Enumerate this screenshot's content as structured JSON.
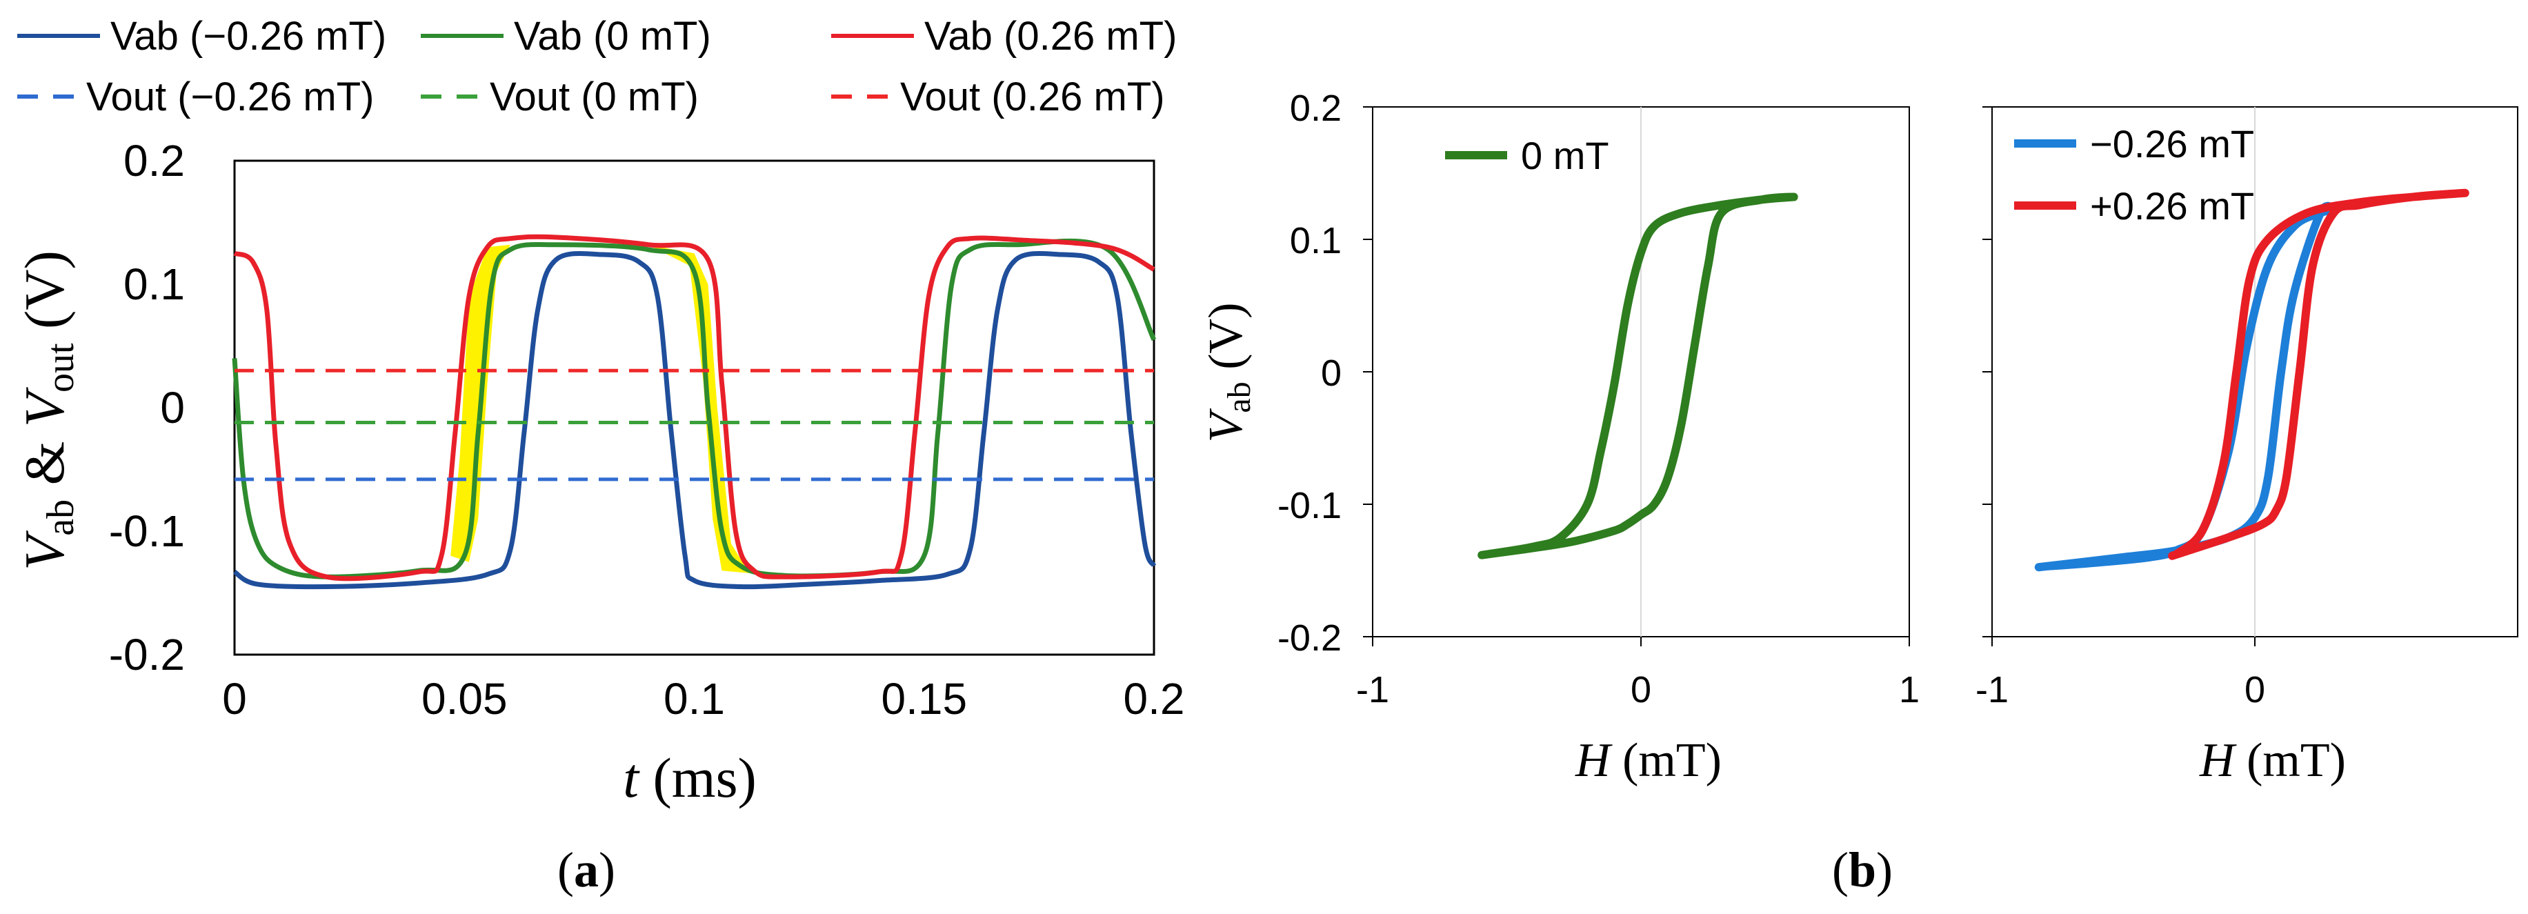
{
  "chart_data": [
    {
      "type": "line",
      "panel_label": "a",
      "xlabel": "t (ms)",
      "ylabel": "V_ab & V_out (V)",
      "xlim": [
        0,
        0.2
      ],
      "ylim": [
        -0.2,
        0.2
      ],
      "xticks": [
        "0",
        "0.05",
        "0.1",
        "0.15",
        "0.2"
      ],
      "yticks": [
        "0.2",
        "0.1",
        "0",
        "-0.1",
        "-0.2"
      ],
      "grid": false,
      "legend_position": "top",
      "legend": [
        {
          "label": "Vab (−0.26 mT)",
          "color": "#1f4e9b",
          "style": "solid"
        },
        {
          "label": "Vab (0 mT)",
          "color": "#2e8b2e",
          "style": "solid"
        },
        {
          "label": "Vab (0.26 mT)",
          "color": "#e8202a",
          "style": "solid"
        },
        {
          "label": "Vout (−0.26 mT)",
          "color": "#2f6bd0",
          "style": "dashed"
        },
        {
          "label": "Vout (0 mT)",
          "color": "#3aa03a",
          "style": "dashed"
        },
        {
          "label": "Vout (0.26 mT)",
          "color": "#f02828",
          "style": "dashed"
        }
      ],
      "series": [
        {
          "name": "Vab (−0.26 mT)",
          "color": "#1f4e9b",
          "x": [
            0,
            0.005,
            0.02,
            0.04,
            0.055,
            0.06,
            0.063,
            0.066,
            0.07,
            0.08,
            0.088,
            0.092,
            0.095,
            0.098,
            0.1,
            0.11,
            0.125,
            0.14,
            0.155,
            0.16,
            0.163,
            0.166,
            0.17,
            0.18,
            0.188,
            0.192,
            0.195,
            0.198,
            0.2
          ],
          "y": [
            -0.133,
            -0.143,
            -0.145,
            -0.142,
            -0.135,
            -0.115,
            -0.02,
            0.08,
            0.12,
            0.124,
            0.118,
            0.09,
            -0.02,
            -0.12,
            -0.14,
            -0.145,
            -0.143,
            -0.14,
            -0.135,
            -0.115,
            -0.02,
            0.08,
            0.12,
            0.124,
            0.118,
            0.09,
            -0.02,
            -0.11,
            -0.128
          ]
        },
        {
          "name": "Vab (0 mT)",
          "color": "#2e8b2e",
          "x": [
            0,
            0.002,
            0.005,
            0.01,
            0.02,
            0.04,
            0.05,
            0.053,
            0.056,
            0.06,
            0.07,
            0.09,
            0.1,
            0.103,
            0.106,
            0.11,
            0.12,
            0.14,
            0.15,
            0.153,
            0.156,
            0.16,
            0.17,
            0.19,
            0.2
          ],
          "y": [
            0.04,
            -0.06,
            -0.11,
            -0.13,
            -0.137,
            -0.132,
            -0.12,
            -0.02,
            0.1,
            0.128,
            0.132,
            0.128,
            0.11,
            0.0,
            -0.1,
            -0.128,
            -0.136,
            -0.133,
            -0.12,
            -0.02,
            0.1,
            0.128,
            0.132,
            0.128,
            0.055
          ]
        },
        {
          "name": "Vab (0.26 mT)",
          "color": "#e8202a",
          "x": [
            0,
            0.004,
            0.007,
            0.009,
            0.012,
            0.02,
            0.04,
            0.045,
            0.048,
            0.051,
            0.055,
            0.06,
            0.07,
            0.09,
            0.103,
            0.106,
            0.109,
            0.113,
            0.12,
            0.14,
            0.145,
            0.148,
            0.151,
            0.155,
            0.16,
            0.17,
            0.19,
            0.2
          ],
          "y": [
            0.125,
            0.118,
            0.08,
            -0.03,
            -0.11,
            -0.137,
            -0.133,
            -0.12,
            -0.02,
            0.09,
            0.13,
            0.137,
            0.138,
            0.132,
            0.12,
            0.02,
            -0.1,
            -0.132,
            -0.137,
            -0.133,
            -0.12,
            -0.02,
            0.09,
            0.13,
            0.137,
            0.136,
            0.13,
            0.112
          ]
        },
        {
          "name": "Vout (−0.26 mT)",
          "color": "#2f6bd0",
          "dashed": true,
          "x": [
            0,
            0.2
          ],
          "y": [
            -0.058,
            -0.058
          ]
        },
        {
          "name": "Vout (0 mT)",
          "color": "#3aa03a",
          "dashed": true,
          "x": [
            0,
            0.2
          ],
          "y": [
            -0.012,
            -0.012
          ]
        },
        {
          "name": "Vout (0.26 mT)",
          "color": "#f02828",
          "dashed": true,
          "x": [
            0,
            0.2
          ],
          "y": [
            0.03,
            0.03
          ]
        }
      ],
      "highlight_color": "#fff200"
    },
    {
      "type": "line",
      "panel_label": "b",
      "xlabel": "H (mT)",
      "ylabel": "V_ab (V)",
      "xlim": [
        -1,
        1
      ],
      "ylim": [
        -0.2,
        0.2
      ],
      "xticks": [
        "-1",
        "0",
        "1"
      ],
      "yticks": [
        "0.2",
        "0.1",
        "0",
        "-0.1",
        "-0.2"
      ],
      "legend_position": "top-left",
      "series": [
        {
          "name": "0 mT",
          "color": "#2e7d1f",
          "x": [
            -0.58,
            -0.4,
            -0.3,
            -0.2,
            -0.15,
            -0.1,
            -0.05,
            0.0,
            0.05,
            0.15,
            0.3,
            0.45,
            0.57,
            0.45,
            0.3,
            0.25,
            0.2,
            0.15,
            0.1,
            0.05,
            0.0,
            -0.05,
            -0.1,
            -0.25,
            -0.4,
            -0.58
          ],
          "y": [
            -0.138,
            -0.132,
            -0.125,
            -0.1,
            -0.06,
            -0.01,
            0.05,
            0.09,
            0.11,
            0.12,
            0.126,
            0.13,
            0.132,
            0.13,
            0.12,
            0.08,
            0.02,
            -0.04,
            -0.08,
            -0.1,
            -0.108,
            -0.115,
            -0.12,
            -0.128,
            -0.133,
            -0.138
          ]
        }
      ]
    },
    {
      "type": "line",
      "panel_label": "",
      "xlabel": "H (mT)",
      "ylabel": "",
      "xlim": [
        -1,
        1
      ],
      "ylim": [
        -0.2,
        0.2
      ],
      "xticks": [
        "-1",
        "0"
      ],
      "legend_position": "top-left",
      "series": [
        {
          "name": "−0.26 mT",
          "color": "#1e7fd8",
          "x": [
            -0.8,
            -0.6,
            -0.4,
            -0.3,
            -0.2,
            -0.1,
            -0.03,
            0.05,
            0.15,
            0.25,
            0.3,
            0.25,
            0.15,
            0.1,
            0.05,
            0.0,
            -0.1,
            -0.3,
            -0.5,
            -0.8
          ],
          "y": [
            -0.147,
            -0.144,
            -0.14,
            -0.135,
            -0.12,
            -0.06,
            0.02,
            0.08,
            0.11,
            0.12,
            0.122,
            0.12,
            0.06,
            0.0,
            -0.08,
            -0.11,
            -0.125,
            -0.135,
            -0.14,
            -0.147
          ]
        },
        {
          "name": "+0.26 mT",
          "color": "#e81e25",
          "x": [
            -0.3,
            -0.2,
            -0.12,
            -0.07,
            -0.02,
            0.05,
            0.2,
            0.4,
            0.6,
            0.8,
            0.6,
            0.4,
            0.3,
            0.22,
            0.17,
            0.12,
            0.08,
            0.03,
            -0.1,
            -0.3
          ],
          "y": [
            -0.138,
            -0.12,
            -0.07,
            0.0,
            0.07,
            0.1,
            0.12,
            0.128,
            0.132,
            0.135,
            0.132,
            0.126,
            0.12,
            0.08,
            0.0,
            -0.08,
            -0.105,
            -0.115,
            -0.125,
            -0.138
          ]
        }
      ]
    }
  ]
}
